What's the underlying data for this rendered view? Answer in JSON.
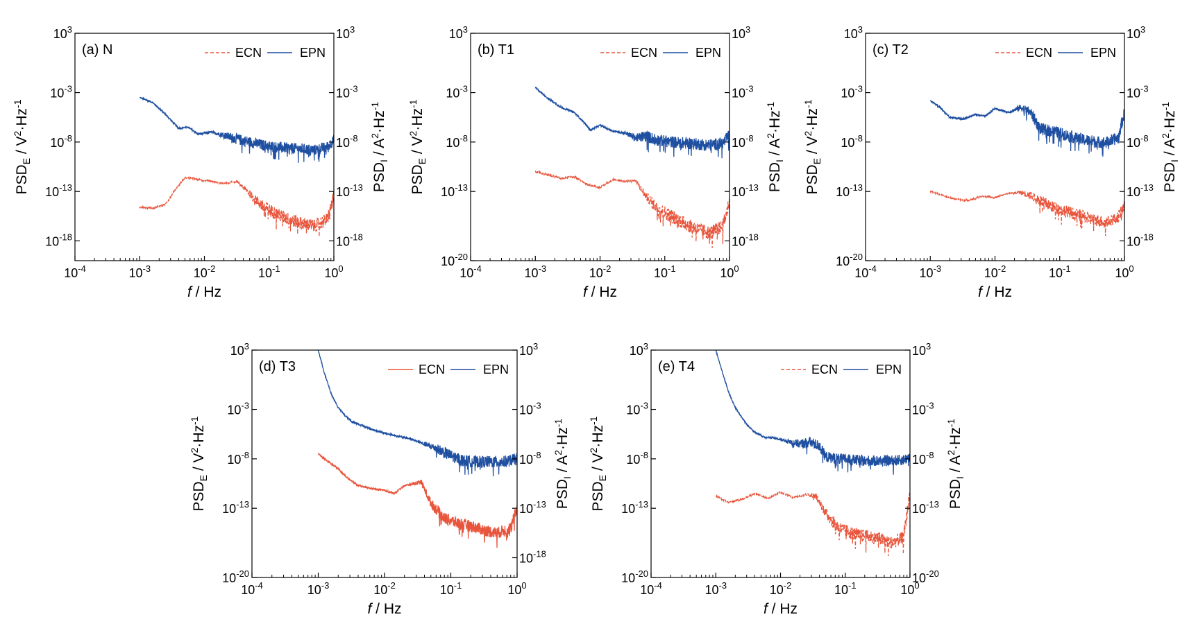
{
  "colors": {
    "ecn": "#E8553C",
    "epn": "#1F4FA0",
    "axis": "#000000"
  },
  "chart_data": [
    {
      "type": "line",
      "panel_label": "(a)",
      "panel_name": "N",
      "xlabel_italic": "f",
      "xlabel_unit": " / Hz",
      "ylabel_left": {
        "base": "PSD",
        "sub": "E",
        "unit_a": " / V",
        "sup_a": "2",
        "unit_b": "·Hz",
        "sup_b": "-1"
      },
      "ylabel_right": {
        "base": "PSD",
        "sub": "I",
        "unit_a": " / A",
        "sup_a": "2",
        "unit_b": "·Hz",
        "sup_b": "-1"
      },
      "x_log": true,
      "xlim_exp": [
        -4,
        0
      ],
      "x_ticks": [
        {
          "exp": "-4"
        },
        {
          "exp": "-3"
        },
        {
          "exp": "-2"
        },
        {
          "exp": "-1"
        },
        {
          "exp": "0"
        }
      ],
      "left_ylim_exp": [
        -20,
        3
      ],
      "left_ticks": [
        {
          "exp": "3"
        },
        {
          "exp": "-3"
        },
        {
          "exp": "-8"
        },
        {
          "exp": "-13"
        },
        {
          "exp": "-18"
        }
      ],
      "right_ylim_exp": [
        -20,
        3
      ],
      "right_ticks": [
        {
          "exp": "3"
        },
        {
          "exp": "-3"
        },
        {
          "exp": "-8"
        },
        {
          "exp": "-13"
        },
        {
          "exp": "-18"
        }
      ],
      "legend": {
        "placement": "top-right",
        "ecn_label": "ECN",
        "epn_label": "EPN",
        "ecn_style": "dashed"
      },
      "series": [
        {
          "name": "EPN",
          "axis": "left",
          "x_log10": [
            -3.0,
            -2.8,
            -2.6,
            -2.4,
            -2.25,
            -2.1,
            -1.9,
            -1.7,
            -1.5,
            -1.3,
            -1.1,
            -0.9,
            -0.7,
            -0.5,
            -0.3,
            -0.1,
            0.0
          ],
          "y_log10": [
            -3.5,
            -4.0,
            -5.2,
            -6.6,
            -6.5,
            -7.2,
            -7.0,
            -7.3,
            -7.7,
            -8.0,
            -8.3,
            -8.5,
            -8.6,
            -8.7,
            -8.8,
            -8.5,
            -7.8
          ],
          "noise": 0.55,
          "noise_from": -1.9
        },
        {
          "name": "ECN",
          "axis": "left",
          "x_log10": [
            -3.0,
            -2.8,
            -2.6,
            -2.45,
            -2.3,
            -2.1,
            -1.9,
            -1.7,
            -1.5,
            -1.3,
            -1.1,
            -0.9,
            -0.7,
            -0.5,
            -0.3,
            -0.1,
            0.0
          ],
          "y_log10": [
            -14.6,
            -14.7,
            -14.3,
            -12.8,
            -11.6,
            -11.8,
            -12.0,
            -12.2,
            -12.0,
            -13.2,
            -14.5,
            -15.2,
            -15.8,
            -16.2,
            -16.5,
            -15.8,
            -13.5
          ],
          "noise": 0.65,
          "noise_from": -1.5
        }
      ]
    },
    {
      "type": "line",
      "panel_label": "(b)",
      "panel_name": "T1",
      "xlabel_italic": "f",
      "xlabel_unit": " / Hz",
      "ylabel_left": {
        "base": "PSD",
        "sub": "E",
        "unit_a": " / V",
        "sup_a": "2",
        "unit_b": "·Hz",
        "sup_b": "-1"
      },
      "ylabel_right": {
        "base": "PSD",
        "sub": "I",
        "unit_a": " / A",
        "sup_a": "2",
        "unit_b": "·Hz",
        "sup_b": "-1"
      },
      "x_log": true,
      "xlim_exp": [
        -4,
        0
      ],
      "x_ticks": [
        {
          "exp": "-4"
        },
        {
          "exp": "-3"
        },
        {
          "exp": "-2"
        },
        {
          "exp": "-1"
        },
        {
          "exp": "0"
        }
      ],
      "left_ylim_exp": [
        -20,
        3
      ],
      "left_ticks": [
        {
          "exp": "3"
        },
        {
          "exp": "-3"
        },
        {
          "exp": "-8"
        },
        {
          "exp": "-13"
        },
        {
          "exp": "-20"
        }
      ],
      "right_ylim_exp": [
        -20,
        3
      ],
      "right_ticks": [
        {
          "exp": "3"
        },
        {
          "exp": "-3"
        },
        {
          "exp": "-8"
        },
        {
          "exp": "-13"
        },
        {
          "exp": "-18"
        }
      ],
      "legend": {
        "placement": "top-right",
        "ecn_label": "ECN",
        "epn_label": "EPN",
        "ecn_style": "dashed"
      },
      "series": [
        {
          "name": "EPN",
          "axis": "left",
          "x_log10": [
            -3.0,
            -2.8,
            -2.6,
            -2.4,
            -2.25,
            -2.15,
            -2.0,
            -1.8,
            -1.6,
            -1.45,
            -1.3,
            -1.1,
            -0.9,
            -0.7,
            -0.5,
            -0.3,
            -0.1,
            0.0
          ],
          "y_log10": [
            -2.5,
            -3.6,
            -4.5,
            -5.0,
            -6.0,
            -6.8,
            -6.3,
            -6.9,
            -7.1,
            -7.6,
            -7.4,
            -7.8,
            -8.0,
            -8.1,
            -8.2,
            -8.3,
            -8.1,
            -7.3
          ],
          "noise": 0.6,
          "noise_from": -1.7
        },
        {
          "name": "ECN",
          "axis": "left",
          "x_log10": [
            -3.0,
            -2.8,
            -2.6,
            -2.4,
            -2.2,
            -2.0,
            -1.8,
            -1.6,
            -1.45,
            -1.3,
            -1.1,
            -0.9,
            -0.7,
            -0.5,
            -0.3,
            -0.1,
            0.0
          ],
          "y_log10": [
            -11.0,
            -11.3,
            -11.7,
            -11.5,
            -12.3,
            -12.6,
            -11.8,
            -12.0,
            -11.9,
            -13.4,
            -14.8,
            -15.5,
            -16.2,
            -16.8,
            -17.2,
            -16.5,
            -14.0
          ],
          "noise": 0.7,
          "noise_from": -1.5
        }
      ]
    },
    {
      "type": "line",
      "panel_label": "(c)",
      "panel_name": "T2",
      "xlabel_italic": "f",
      "xlabel_unit": " / Hz",
      "ylabel_left": {
        "base": "PSD",
        "sub": "E",
        "unit_a": " / V",
        "sup_a": "2",
        "unit_b": "·Hz",
        "sup_b": "-1"
      },
      "ylabel_right": {
        "base": "PSD",
        "sub": "I",
        "unit_a": " / A",
        "sup_a": "2",
        "unit_b": "·Hz",
        "sup_b": "-1"
      },
      "x_log": true,
      "xlim_exp": [
        -4,
        0
      ],
      "x_ticks": [
        {
          "exp": "-4"
        },
        {
          "exp": "-3"
        },
        {
          "exp": "-2"
        },
        {
          "exp": "-1"
        },
        {
          "exp": "0"
        }
      ],
      "left_ylim_exp": [
        -20,
        3
      ],
      "left_ticks": [
        {
          "exp": "3"
        },
        {
          "exp": "-3"
        },
        {
          "exp": "-8"
        },
        {
          "exp": "-13"
        },
        {
          "exp": "-20"
        }
      ],
      "right_ylim_exp": [
        -20,
        3
      ],
      "right_ticks": [
        {
          "exp": "3"
        },
        {
          "exp": "-3"
        },
        {
          "exp": "-8"
        },
        {
          "exp": "-13"
        },
        {
          "exp": "-18"
        }
      ],
      "legend": {
        "placement": "top-right",
        "ecn_label": "ECN",
        "epn_label": "EPN",
        "ecn_style": "dashed"
      },
      "series": [
        {
          "name": "EPN",
          "axis": "left",
          "x_log10": [
            -3.0,
            -2.85,
            -2.7,
            -2.5,
            -2.3,
            -2.15,
            -2.0,
            -1.8,
            -1.6,
            -1.45,
            -1.3,
            -1.1,
            -0.9,
            -0.7,
            -0.5,
            -0.3,
            -0.1,
            0.0
          ],
          "y_log10": [
            -3.8,
            -4.5,
            -5.5,
            -5.7,
            -5.2,
            -5.4,
            -4.6,
            -5.0,
            -4.5,
            -5.0,
            -6.7,
            -6.9,
            -7.3,
            -7.7,
            -7.9,
            -8.1,
            -7.6,
            -5.0
          ],
          "noise": 0.6,
          "noise_from": -1.8
        },
        {
          "name": "ECN",
          "axis": "left",
          "x_log10": [
            -3.0,
            -2.8,
            -2.6,
            -2.4,
            -2.2,
            -2.0,
            -1.8,
            -1.6,
            -1.45,
            -1.3,
            -1.1,
            -0.9,
            -0.7,
            -0.5,
            -0.3,
            -0.1,
            0.0
          ],
          "y_log10": [
            -13.0,
            -13.4,
            -13.8,
            -13.9,
            -13.5,
            -13.6,
            -13.2,
            -13.1,
            -13.4,
            -13.9,
            -14.6,
            -15.0,
            -15.4,
            -15.8,
            -16.1,
            -15.6,
            -14.5
          ],
          "noise": 0.6,
          "noise_from": -1.7
        }
      ]
    },
    {
      "type": "line",
      "panel_label": "(d)",
      "panel_name": "T3",
      "xlabel_italic": "f",
      "xlabel_unit": " / Hz",
      "ylabel_left": {
        "base": "PSD",
        "sub": "E",
        "unit_a": " / V",
        "sup_a": "2",
        "unit_b": "·Hz",
        "sup_b": "-1"
      },
      "ylabel_right": {
        "base": "PSD",
        "sub": "I",
        "unit_a": " / A",
        "sup_a": "2",
        "unit_b": "·Hz",
        "sup_b": "-1"
      },
      "x_log": true,
      "xlim_exp": [
        -4,
        0
      ],
      "x_ticks": [
        {
          "exp": "-4"
        },
        {
          "exp": "-3"
        },
        {
          "exp": "-2"
        },
        {
          "exp": "-1"
        },
        {
          "exp": "0"
        }
      ],
      "left_ylim_exp": [
        -20,
        3
      ],
      "left_ticks": [
        {
          "exp": "3"
        },
        {
          "exp": "-3"
        },
        {
          "exp": "-8"
        },
        {
          "exp": "-13"
        },
        {
          "exp": "-20"
        }
      ],
      "right_ylim_exp": [
        -20,
        3
      ],
      "right_ticks": [
        {
          "exp": "3"
        },
        {
          "exp": "-3"
        },
        {
          "exp": "-8"
        },
        {
          "exp": "-13"
        },
        {
          "exp": "-18"
        }
      ],
      "legend": {
        "placement": "top-right",
        "ecn_label": "ECN",
        "epn_label": "EPN",
        "ecn_style": "solid"
      },
      "series": [
        {
          "name": "EPN",
          "axis": "left",
          "x_log10": [
            -3.0,
            -2.9,
            -2.8,
            -2.7,
            -2.6,
            -2.5,
            -2.35,
            -2.2,
            -2.0,
            -1.8,
            -1.6,
            -1.4,
            -1.2,
            -1.0,
            -0.8,
            -0.6,
            -0.4,
            -0.2,
            0.0
          ],
          "y_log10": [
            3.0,
            0.5,
            -1.5,
            -2.8,
            -3.6,
            -4.2,
            -4.6,
            -5.0,
            -5.4,
            -5.7,
            -6.0,
            -6.5,
            -7.0,
            -7.7,
            -8.2,
            -8.3,
            -8.3,
            -8.3,
            -8.0
          ],
          "noise": 0.6,
          "noise_from": -1.5
        },
        {
          "name": "ECN",
          "axis": "left",
          "x_log10": [
            -3.0,
            -2.85,
            -2.7,
            -2.55,
            -2.4,
            -2.2,
            -2.0,
            -1.85,
            -1.7,
            -1.55,
            -1.45,
            -1.3,
            -1.1,
            -0.9,
            -0.7,
            -0.5,
            -0.3,
            -0.1,
            0.0
          ],
          "y_log10": [
            -7.5,
            -8.3,
            -9.0,
            -10.0,
            -10.7,
            -11.0,
            -11.2,
            -11.5,
            -10.7,
            -10.5,
            -10.3,
            -12.5,
            -14.0,
            -14.5,
            -14.8,
            -15.2,
            -15.5,
            -15.0,
            -13.0
          ],
          "noise": 0.6,
          "noise_from": -1.6
        }
      ]
    },
    {
      "type": "line",
      "panel_label": "(e)",
      "panel_name": "T4",
      "xlabel_italic": "f",
      "xlabel_unit": " / Hz",
      "ylabel_left": {
        "base": "PSD",
        "sub": "E",
        "unit_a": " / V",
        "sup_a": "2",
        "unit_b": "·Hz",
        "sup_b": "-1"
      },
      "ylabel_right": {
        "base": "PSD",
        "sub": "I",
        "unit_a": " / A",
        "sup_a": "2",
        "unit_b": "·Hz",
        "sup_b": "-1"
      },
      "x_log": true,
      "xlim_exp": [
        -4,
        0
      ],
      "x_ticks": [
        {
          "exp": "-4"
        },
        {
          "exp": "-3"
        },
        {
          "exp": "-2"
        },
        {
          "exp": "-1"
        },
        {
          "exp": "0"
        }
      ],
      "left_ylim_exp": [
        -20,
        3
      ],
      "left_ticks": [
        {
          "exp": "3"
        },
        {
          "exp": "-3"
        },
        {
          "exp": "-8"
        },
        {
          "exp": "-13"
        },
        {
          "exp": "-20"
        }
      ],
      "right_ylim_exp": [
        -20,
        3
      ],
      "right_ticks": [
        {
          "exp": "3"
        },
        {
          "exp": "-3"
        },
        {
          "exp": "-8"
        },
        {
          "exp": "-13"
        },
        {
          "exp": "-20"
        }
      ],
      "legend": {
        "placement": "top-right",
        "ecn_label": "ECN",
        "epn_label": "EPN",
        "ecn_style": "dashed"
      },
      "series": [
        {
          "name": "EPN",
          "axis": "left",
          "x_log10": [
            -3.0,
            -2.9,
            -2.8,
            -2.7,
            -2.6,
            -2.5,
            -2.4,
            -2.25,
            -2.1,
            -1.9,
            -1.7,
            -1.55,
            -1.4,
            -1.3,
            -1.1,
            -0.9,
            -0.7,
            -0.5,
            -0.3,
            -0.1,
            0.0
          ],
          "y_log10": [
            3.0,
            0.8,
            -1.3,
            -2.8,
            -3.8,
            -4.7,
            -5.3,
            -5.8,
            -5.9,
            -6.2,
            -6.5,
            -6.3,
            -6.7,
            -7.8,
            -8.0,
            -8.1,
            -8.2,
            -8.2,
            -8.2,
            -8.1,
            -7.8
          ],
          "noise": 0.55,
          "noise_from": -2.0
        },
        {
          "name": "ECN",
          "axis": "left",
          "x_log10": [
            -3.0,
            -2.8,
            -2.6,
            -2.4,
            -2.2,
            -2.0,
            -1.8,
            -1.6,
            -1.45,
            -1.3,
            -1.1,
            -0.9,
            -0.7,
            -0.5,
            -0.3,
            -0.1,
            0.0
          ],
          "y_log10": [
            -11.8,
            -12.4,
            -12.1,
            -11.5,
            -12.0,
            -11.4,
            -11.9,
            -11.6,
            -11.8,
            -13.5,
            -15.0,
            -15.5,
            -15.8,
            -16.0,
            -16.5,
            -16.0,
            -11.5
          ],
          "noise": 0.65,
          "noise_from": -1.6
        }
      ]
    }
  ]
}
